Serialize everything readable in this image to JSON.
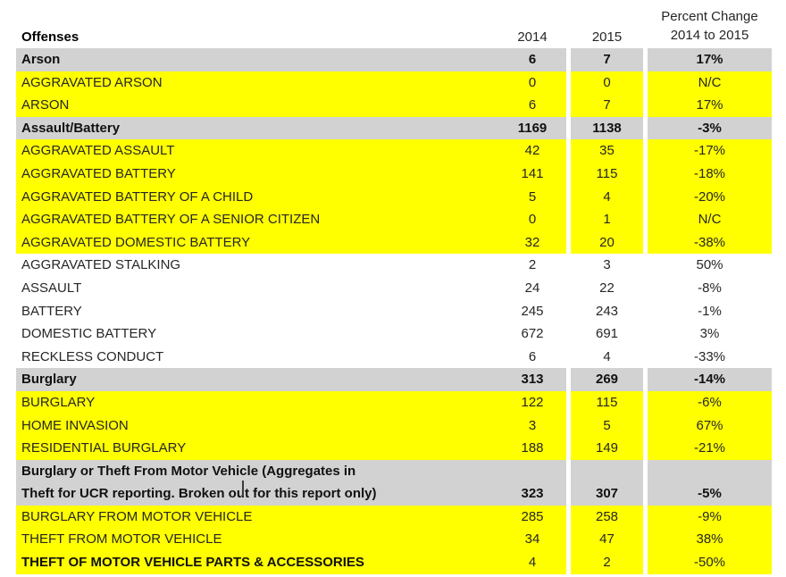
{
  "colors": {
    "group_row_bg": "#d2d2d2",
    "detail_row_bg": "#ffff00",
    "white_row_bg": "#ffffff",
    "text": "#262626",
    "bold_text": "#111111"
  },
  "header": {
    "offenses_label": "Offenses",
    "year1_label": "2014",
    "year2_label": "2015",
    "pct_label_line1": "Percent Change",
    "pct_label_line2": "2014 to 2015"
  },
  "table_rows": [
    {
      "label": "Arson",
      "v2014": "6",
      "v2015": "7",
      "pct": "17%",
      "style": "group"
    },
    {
      "label": "AGGRAVATED ARSON",
      "v2014": "0",
      "v2015": "0",
      "pct": "N/C",
      "style": "yellow"
    },
    {
      "label": "ARSON",
      "v2014": "6",
      "v2015": "7",
      "pct": "17%",
      "style": "yellow"
    },
    {
      "label": "Assault/Battery",
      "v2014": "1169",
      "v2015": "1138",
      "pct": "-3%",
      "style": "group"
    },
    {
      "label": "AGGRAVATED ASSAULT",
      "v2014": "42",
      "v2015": "35",
      "pct": "-17%",
      "style": "yellow"
    },
    {
      "label": "AGGRAVATED BATTERY",
      "v2014": "141",
      "v2015": "115",
      "pct": "-18%",
      "style": "yellow"
    },
    {
      "label": "AGGRAVATED BATTERY OF A CHILD",
      "v2014": "5",
      "v2015": "4",
      "pct": "-20%",
      "style": "yellow"
    },
    {
      "label": "AGGRAVATED BATTERY OF A SENIOR CITIZEN",
      "v2014": "0",
      "v2015": "1",
      "pct": "N/C",
      "style": "yellow"
    },
    {
      "label": "AGGRAVATED DOMESTIC BATTERY",
      "v2014": "32",
      "v2015": "20",
      "pct": "-38%",
      "style": "yellow"
    },
    {
      "label": "AGGRAVATED STALKING",
      "v2014": "2",
      "v2015": "3",
      "pct": "50%",
      "style": "white"
    },
    {
      "label": "ASSAULT",
      "v2014": "24",
      "v2015": "22",
      "pct": "-8%",
      "style": "white"
    },
    {
      "label": "BATTERY",
      "v2014": "245",
      "v2015": "243",
      "pct": "-1%",
      "style": "white"
    },
    {
      "label": "DOMESTIC BATTERY",
      "v2014": "672",
      "v2015": "691",
      "pct": "3%",
      "style": "white"
    },
    {
      "label": "RECKLESS CONDUCT",
      "v2014": "6",
      "v2015": "4",
      "pct": "-33%",
      "style": "white"
    },
    {
      "label": "Burglary",
      "v2014": "313",
      "v2015": "269",
      "pct": "-14%",
      "style": "group"
    },
    {
      "label": "BURGLARY",
      "v2014": "122",
      "v2015": "115",
      "pct": "-6%",
      "style": "yellow"
    },
    {
      "label": "HOME INVASION",
      "v2014": "3",
      "v2015": "5",
      "pct": "67%",
      "style": "yellow"
    },
    {
      "label": "RESIDENTIAL BURGLARY",
      "v2014": "188",
      "v2015": "149",
      "pct": "-21%",
      "style": "yellow"
    },
    {
      "label": "Burglary or Theft From Motor Vehicle (Aggregates in",
      "label2": "Theft for UCR reporting.  Broken out for this report only)",
      "v2014": "323",
      "v2015": "307",
      "pct": "-5%",
      "style": "group-tall"
    },
    {
      "label": "BURGLARY FROM MOTOR VEHICLE",
      "v2014": "285",
      "v2015": "258",
      "pct": "-9%",
      "style": "yellow"
    },
    {
      "label": "THEFT FROM MOTOR VEHICLE",
      "v2014": "34",
      "v2015": "47",
      "pct": "38%",
      "style": "yellow"
    },
    {
      "label": "THEFT OF MOTOR VEHICLE PARTS & ACCESSORIES",
      "v2014": "4",
      "v2015": "2",
      "pct": "-50%",
      "style": "yellow-bold"
    }
  ],
  "cursor": {
    "present": "true"
  }
}
